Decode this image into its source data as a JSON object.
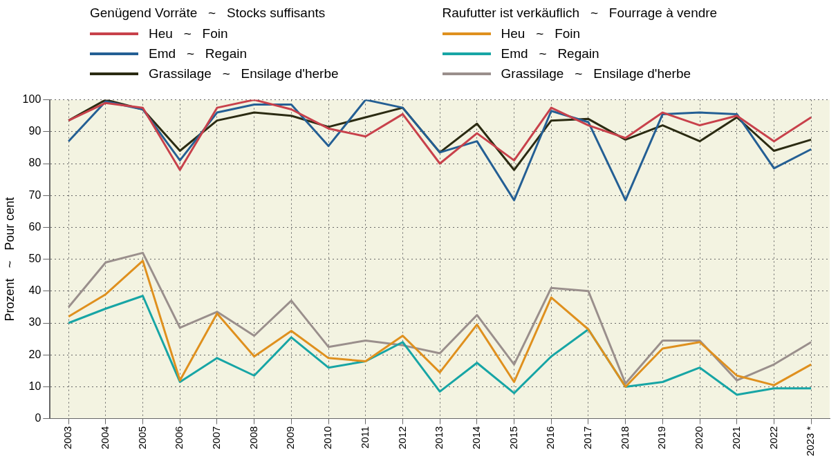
{
  "chart_data": {
    "type": "line",
    "ylabel": "Prozent   ~   Pour cent",
    "categories": [
      "2003",
      "2004",
      "2005",
      "2006",
      "2007",
      "2008",
      "2009",
      "2010",
      "2011",
      "2012",
      "2013",
      "2014",
      "2015",
      "2016",
      "2017",
      "2018",
      "2019",
      "2020",
      "2021",
      "2022",
      "2023 *"
    ],
    "series": [
      {
        "name": "Heu   ~   Foin",
        "color": "#c8414b",
        "values": [
          93.5,
          99,
          97.5,
          78,
          97.5,
          100,
          97,
          91,
          88.5,
          95.5,
          80,
          89.5,
          81,
          97.5,
          92,
          88,
          96,
          92,
          95,
          87,
          94.5
        ]
      },
      {
        "name": "Emd   ~   Regain",
        "color": "#245f94",
        "values": [
          87,
          99.5,
          97,
          81,
          96,
          98.5,
          98.5,
          85.5,
          100,
          97.5,
          83.5,
          87,
          68.5,
          96.5,
          93,
          68.5,
          95.5,
          96,
          95.5,
          78.5,
          84.5
        ]
      },
      {
        "name": "Grassilage   ~   Ensilage d'herbe",
        "color": "#2b2b12",
        "values": [
          93.5,
          100,
          97,
          84,
          93.5,
          96,
          95,
          91.5,
          94.5,
          97.5,
          83.5,
          92.5,
          78,
          93.5,
          94,
          87.5,
          92,
          87,
          94.5,
          84,
          87.5
        ]
      },
      {
        "name": "Heu   ~   Foin",
        "color": "#df901e",
        "values": [
          32,
          39,
          49.5,
          12,
          33,
          19.5,
          27.5,
          19,
          18,
          26,
          14.5,
          29.5,
          11.5,
          38,
          28,
          10,
          22,
          24,
          13.5,
          10.5,
          17
        ]
      },
      {
        "name": "Emd   ~   Regain",
        "color": "#17a5a5",
        "values": [
          30,
          34.5,
          38.5,
          11.5,
          19,
          13.5,
          25.5,
          16,
          18,
          24,
          8.5,
          17.5,
          8,
          19.5,
          28,
          10,
          11.5,
          16,
          7.5,
          9.5,
          9.5
        ]
      },
      {
        "name": "Grassilage   ~   Ensilage d'herbe",
        "color": "#9a8f8c",
        "values": [
          35,
          49,
          52,
          28.5,
          33.5,
          26,
          37,
          22.5,
          24.5,
          23,
          20.5,
          32.5,
          17,
          41,
          40,
          11,
          24.5,
          24.5,
          12,
          17,
          24
        ]
      }
    ],
    "annotations": [
      "Genügend Vorräte   ~   Stocks suffisants",
      "Raufutter ist verkäuflich   ~   Fourrage à vendre"
    ],
    "ylim": [
      0,
      100
    ],
    "yticks": [
      0,
      10,
      20,
      30,
      40,
      50,
      60,
      70,
      80,
      90,
      100
    ],
    "grid": true,
    "legend": "top",
    "marker": "none",
    "line_style": "solid"
  }
}
